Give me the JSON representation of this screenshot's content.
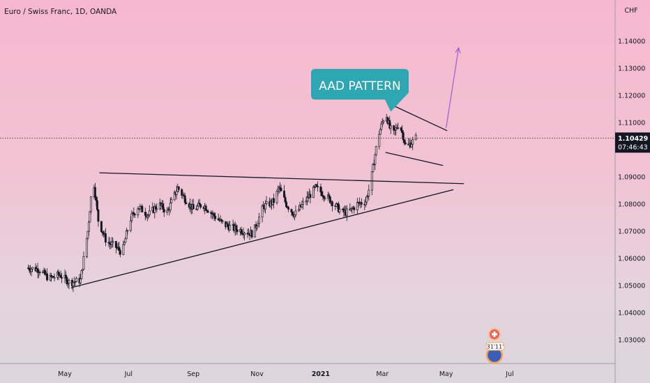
{
  "chart_data": {
    "type": "candlestick",
    "title": "Euro / Swiss Franc, 1D, OANDA",
    "currency": "CHF",
    "last_price": "1.10429",
    "countdown": "07:46:43",
    "ylim": [
      1.0215,
      1.1515
    ],
    "y_ticks": [
      "1.14000",
      "1.13000",
      "1.12000",
      "1.11000",
      "1.09000",
      "1.08000",
      "1.07000",
      "1.06000",
      "1.05000",
      "1.04000",
      "1.03000"
    ],
    "y_tick_values": [
      1.14,
      1.13,
      1.12,
      1.11,
      1.09,
      1.08,
      1.07,
      1.06,
      1.05,
      1.04,
      1.03
    ],
    "x_ticks": [
      "May",
      "Jul",
      "Sep",
      "Nov",
      "2021",
      "Mar",
      "May",
      "Jul"
    ],
    "x_tick_days": [
      0,
      61,
      123,
      184,
      245,
      304,
      365,
      426
    ],
    "first_day": -37,
    "last_day": 336,
    "annotation": "AAD PATTERN",
    "event_badge": "31'11'",
    "colors": {
      "candle": "#131722",
      "trendline": "#131722",
      "annotation_bg": "#2fa7b3",
      "annotation_text": "#ffffff",
      "arrow": "#9c5bd6",
      "price_label_bg": "#131722",
      "price_label_text": "#ffffff"
    },
    "anchors": [
      [
        -37,
        1.0565
      ],
      [
        -25,
        1.056
      ],
      [
        -15,
        1.0525
      ],
      [
        -5,
        1.054
      ],
      [
        5,
        1.051
      ],
      [
        15,
        1.052
      ],
      [
        22,
        1.07
      ],
      [
        27,
        1.0905
      ],
      [
        32,
        1.074
      ],
      [
        40,
        1.066
      ],
      [
        48,
        1.0645
      ],
      [
        55,
        1.062
      ],
      [
        62,
        1.074
      ],
      [
        70,
        1.079
      ],
      [
        80,
        1.076
      ],
      [
        90,
        1.08
      ],
      [
        98,
        1.077
      ],
      [
        108,
        1.086
      ],
      [
        115,
        1.082
      ],
      [
        123,
        1.078
      ],
      [
        132,
        1.08
      ],
      [
        142,
        1.076
      ],
      [
        152,
        1.0725
      ],
      [
        162,
        1.071
      ],
      [
        172,
        1.07
      ],
      [
        180,
        1.069
      ],
      [
        190,
        1.079
      ],
      [
        200,
        1.081
      ],
      [
        205,
        1.086
      ],
      [
        212,
        1.08
      ],
      [
        220,
        1.076
      ],
      [
        230,
        1.081
      ],
      [
        240,
        1.086
      ],
      [
        250,
        1.083
      ],
      [
        258,
        1.08
      ],
      [
        265,
        1.077
      ],
      [
        272,
        1.077
      ],
      [
        280,
        1.08
      ],
      [
        288,
        1.081
      ],
      [
        293,
        1.088
      ],
      [
        296,
        1.096
      ],
      [
        300,
        1.105
      ],
      [
        304,
        1.11
      ],
      [
        307,
        1.114
      ],
      [
        311,
        1.108
      ],
      [
        315,
        1.106
      ],
      [
        320,
        1.11
      ],
      [
        324,
        1.105
      ],
      [
        327,
        1.1
      ],
      [
        330,
        1.102
      ],
      [
        333,
        1.103
      ],
      [
        336,
        1.1043
      ]
    ],
    "trendlines": [
      {
        "from": [
          6,
          1.0492
        ],
        "to": [
          372,
          1.0853
        ]
      },
      {
        "from": [
          33,
          1.0915
        ],
        "to": [
          382,
          1.0875
        ]
      },
      {
        "from": [
          313,
          1.1165
        ],
        "to": [
          366,
          1.107
        ]
      },
      {
        "from": [
          307,
          1.099
        ],
        "to": [
          362,
          1.0942
        ]
      }
    ],
    "arrow": {
      "from": [
        365,
        1.108
      ],
      "to": [
        377,
        1.1375
      ]
    },
    "callout_anchor": [
      312,
      1.114
    ]
  }
}
